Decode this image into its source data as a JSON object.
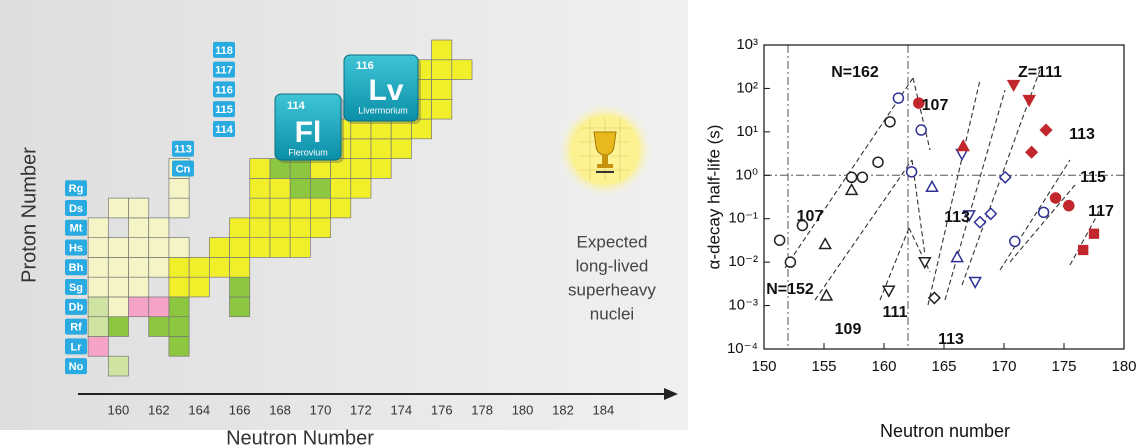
{
  "chart_data": [
    {
      "type": "nuclide-map",
      "xlabel": "Neutron Number",
      "ylabel": "Proton Number",
      "xlim": [
        158,
        187
      ],
      "ylim": [
        101.5,
        118.5
      ],
      "xticks": [
        160,
        162,
        164,
        166,
        168,
        170,
        172,
        174,
        176,
        178,
        180,
        182,
        184
      ],
      "status_colors": {
        "known": "#f4f4c6",
        "new": "#f1ef2a",
        "decay": "#8dc63f",
        "pale": "#cfe3a3",
        "pink": "#f5a3c7"
      },
      "rows": [
        {
          "z": 102,
          "label": "No",
          "pale": [
            160
          ]
        },
        {
          "z": 103,
          "label": "Lr",
          "pink": [
            159
          ],
          "decay": [
            163
          ]
        },
        {
          "z": 104,
          "label": "Rf",
          "pale": [
            159
          ],
          "decay": [
            160,
            162,
            163
          ]
        },
        {
          "z": 105,
          "label": "Db",
          "pale": [
            159
          ],
          "known": [
            160
          ],
          "pink": [
            161,
            162
          ],
          "decay": [
            163,
            166
          ]
        },
        {
          "z": 106,
          "label": "Sg",
          "known": [
            159,
            160,
            161
          ],
          "new": [
            163,
            164
          ],
          "decay": [
            166
          ]
        },
        {
          "z": 107,
          "label": "Bh",
          "known": [
            159,
            160,
            161,
            162
          ],
          "new": [
            163,
            164,
            165,
            166
          ]
        },
        {
          "z": 108,
          "label": "Hs",
          "known": [
            159,
            160,
            161,
            162,
            163
          ],
          "new": [
            165,
            166,
            167,
            168,
            169
          ]
        },
        {
          "z": 109,
          "label": "Mt",
          "known": [
            159,
            161,
            162
          ],
          "new": [
            166,
            167,
            168,
            169,
            170
          ]
        },
        {
          "z": 110,
          "label": "Ds",
          "known": [
            160,
            161,
            163
          ],
          "new": [
            167,
            168,
            169,
            170,
            171
          ]
        },
        {
          "z": 111,
          "label": "Rg",
          "known": [
            163
          ],
          "new": [
            167,
            168,
            171,
            172
          ],
          "decay": [
            169,
            170
          ]
        },
        {
          "z": 112,
          "label": "Cn",
          "known": [
            163
          ],
          "new": [
            167,
            170,
            171,
            172,
            173
          ],
          "decay": [
            168,
            169
          ]
        },
        {
          "z": 113,
          "new": [
            169,
            170,
            171,
            172,
            173,
            174
          ]
        },
        {
          "z": 114,
          "new": [
            170,
            171,
            172,
            173,
            174,
            175
          ]
        },
        {
          "z": 115,
          "new": [
            172,
            173,
            174,
            175,
            176
          ]
        },
        {
          "z": 116,
          "new": [
            173,
            174,
            175,
            176
          ]
        },
        {
          "z": 117,
          "new": [
            175,
            176,
            177
          ]
        },
        {
          "z": 118,
          "new": [
            176
          ]
        }
      ],
      "highlights": [
        {
          "number": 114,
          "symbol": "Fl",
          "name": "Flerovium"
        },
        {
          "number": 116,
          "symbol": "Lv",
          "name": "Livermorium"
        }
      ],
      "note": [
        "Expected",
        "long-lived",
        "superheavy",
        "nuclei"
      ]
    },
    {
      "type": "scatter",
      "xlabel": "Neutron number",
      "ylabel": "α-decay half-life (s)",
      "xlim": [
        150,
        180
      ],
      "xticks": [
        150,
        155,
        160,
        165,
        170,
        175,
        180
      ],
      "ylog": true,
      "ylim": [
        0.0001,
        1000
      ],
      "yticks": [
        {
          "value": 1000,
          "label": "10³"
        },
        {
          "value": 100,
          "label": "10²"
        },
        {
          "value": 10,
          "label": "10¹"
        },
        {
          "value": 1,
          "label": "10⁰"
        },
        {
          "value": 0.1,
          "label": "10⁻¹"
        },
        {
          "value": 0.01,
          "label": "10⁻²"
        },
        {
          "value": 0.001,
          "label": "10⁻³"
        },
        {
          "value": 0.0001,
          "label": "10⁻⁴"
        }
      ],
      "reference_lines": {
        "x": [
          152,
          162
        ],
        "y": [
          1
        ]
      },
      "series": [
        {
          "marker": "circle",
          "filled": false,
          "color": "#222222",
          "x": [
            151.3,
            152.2,
            153.2,
            157.3,
            158.2,
            159.5,
            160.5
          ],
          "values": [
            0.032,
            0.01,
            0.07,
            0.9,
            0.9,
            2,
            17
          ]
        },
        {
          "marker": "triangle",
          "filled": false,
          "color": "#222222",
          "x": [
            155.2,
            155.1,
            157.3
          ],
          "values": [
            0.0017,
            0.026,
            0.46
          ]
        },
        {
          "marker": "triangle-down",
          "filled": false,
          "color": "#222222",
          "x": [
            160.4,
            163.4
          ],
          "values": [
            0.0022,
            0.01
          ]
        },
        {
          "marker": "diamond",
          "filled": false,
          "color": "#222222",
          "x": [
            164.2
          ],
          "values": [
            0.0015
          ]
        },
        {
          "marker": "circle",
          "filled": false,
          "color": "#2e3192",
          "x": [
            161.2,
            162.3,
            163.1,
            170.9,
            173.3
          ],
          "values": [
            60,
            1.2,
            11,
            0.03,
            0.14
          ]
        },
        {
          "marker": "triangle",
          "filled": false,
          "color": "#2e3192",
          "x": [
            164.0,
            166.1
          ],
          "values": [
            0.54,
            0.013
          ]
        },
        {
          "marker": "triangle-down",
          "filled": false,
          "color": "#2e3192",
          "x": [
            166.5,
            167.1,
            167.6
          ],
          "values": [
            3.1,
            0.12,
            0.0035
          ]
        },
        {
          "marker": "diamond",
          "filled": false,
          "color": "#2e3192",
          "x": [
            168.0,
            168.9,
            170.1
          ],
          "values": [
            0.083,
            0.13,
            0.9
          ]
        },
        {
          "marker": "circle",
          "filled": true,
          "color": "#c1272d",
          "x": [
            162.9,
            174.3,
            175.4
          ],
          "values": [
            46,
            0.3,
            0.2
          ]
        },
        {
          "marker": "triangle-down",
          "filled": true,
          "color": "#c1272d",
          "x": [
            170.8,
            172.1
          ],
          "values": [
            120,
            54
          ]
        },
        {
          "marker": "triangle",
          "filled": true,
          "color": "#c1272d",
          "x": [
            166.6
          ],
          "values": [
            4.7
          ]
        },
        {
          "marker": "diamond",
          "filled": true,
          "color": "#c1272d",
          "x": [
            172.3,
            173.5
          ],
          "values": [
            3.4,
            11
          ]
        },
        {
          "marker": "square",
          "filled": true,
          "color": "#c1272d",
          "x": [
            176.6,
            177.5
          ],
          "values": [
            0.019,
            0.045
          ]
        }
      ],
      "annotations": [
        "N=162",
        "Z=111",
        "107",
        "113",
        "115",
        "117",
        "107",
        "113",
        "N=152",
        "111",
        "109",
        "113"
      ]
    }
  ]
}
